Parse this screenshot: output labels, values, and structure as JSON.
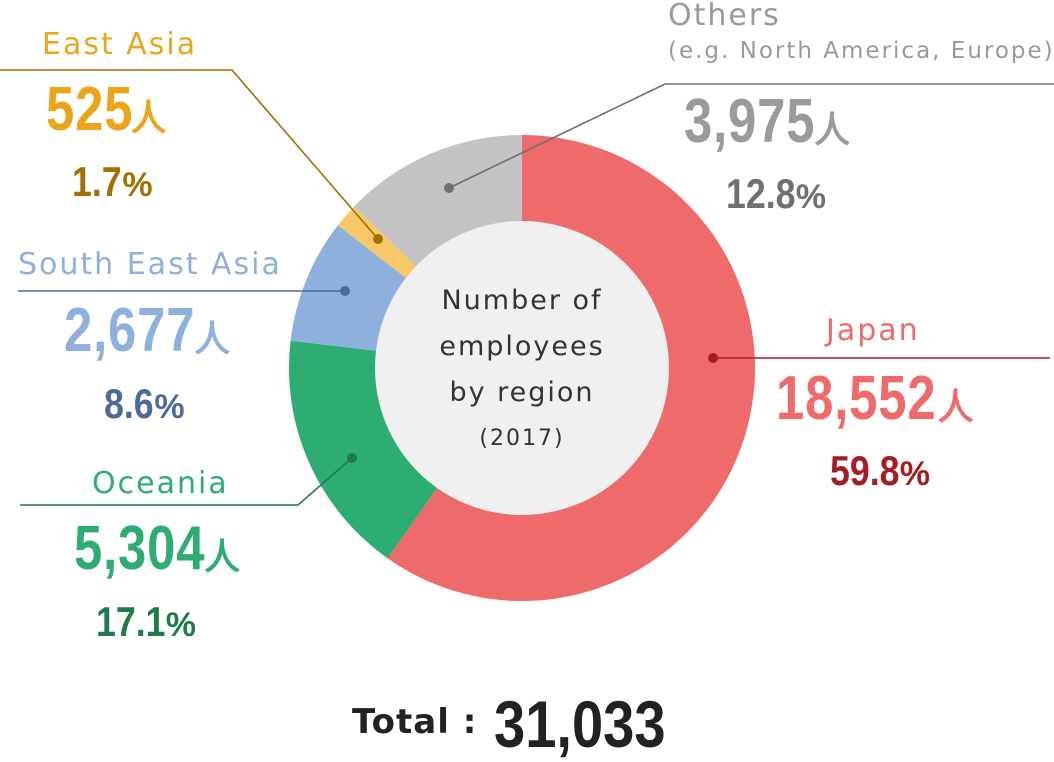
{
  "chart_data": {
    "type": "pie",
    "center_label": [
      "Number of",
      "employees",
      "by region",
      "(2017)"
    ],
    "unit": "人",
    "slices": [
      {
        "name": "Japan",
        "value": 18552,
        "value_text": "18,552",
        "percent": 59.8,
        "percent_text": "59.8",
        "color": "#ef6b6b",
        "label_color": "#ef6b6b",
        "pct_color": "#a51c22"
      },
      {
        "name": "Oceania",
        "value": 5304,
        "value_text": "5,304",
        "percent": 17.1,
        "percent_text": "17.1",
        "color": "#2ead72",
        "label_color": "#2ead72",
        "pct_color": "#1f7a4c"
      },
      {
        "name": "South East Asia",
        "value": 2677,
        "value_text": "2,677",
        "percent": 8.6,
        "percent_text": "8.6",
        "color": "#8db0dd",
        "label_color": "#8db0dd",
        "pct_color": "#4d6b96"
      },
      {
        "name": "East Asia",
        "value": 525,
        "value_text": "525",
        "percent": 1.7,
        "percent_text": "1.7",
        "color": "#f7c866",
        "label_color": "#eba51a",
        "pct_color": "#a36f00"
      },
      {
        "name": "Others",
        "subtitle": "(e.g. North America, Europe)",
        "value": 3975,
        "value_text": "3,975",
        "percent": 12.8,
        "percent_text": "12.8",
        "color": "#c3c3c3",
        "label_color": "#9a9a9a",
        "pct_color": "#707070"
      }
    ],
    "percent_sign": "%",
    "total_label": "Total :",
    "total_value": "31,033",
    "center_fill": "#f0f0f0"
  }
}
